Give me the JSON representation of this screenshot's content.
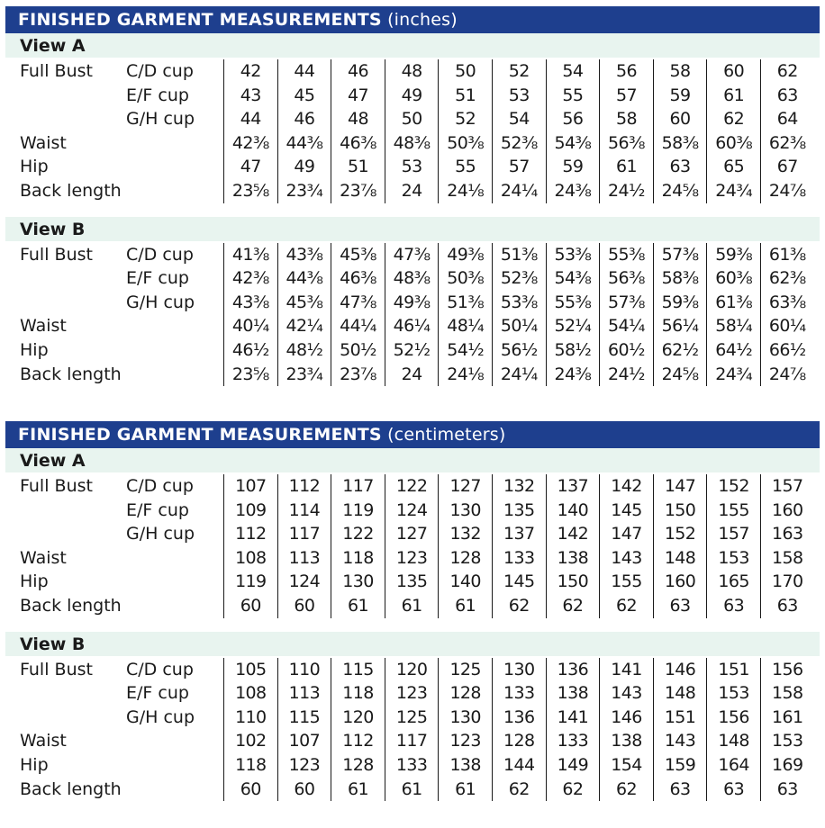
{
  "sections": [
    {
      "title": "FINISHED GARMENT MEASUREMENTS",
      "unit": "(inches)",
      "views": [
        {
          "name": "View A",
          "rows": [
            {
              "label": "Full Bust",
              "sub": "C/D cup",
              "values": [
                "42",
                "44",
                "46",
                "48",
                "50",
                "52",
                "54",
                "56",
                "58",
                "60",
                "62"
              ]
            },
            {
              "label": "",
              "sub": "E/F cup",
              "values": [
                "43",
                "45",
                "47",
                "49",
                "51",
                "53",
                "55",
                "57",
                "59",
                "61",
                "63"
              ]
            },
            {
              "label": "",
              "sub": "G/H cup",
              "values": [
                "44",
                "46",
                "48",
                "50",
                "52",
                "54",
                "56",
                "58",
                "60",
                "62",
                "64"
              ]
            },
            {
              "label": "Waist",
              "sub": "",
              "values": [
                "42⅜",
                "44⅜",
                "46⅜",
                "48⅜",
                "50⅜",
                "52⅜",
                "54⅜",
                "56⅜",
                "58⅜",
                "60⅜",
                "62⅜"
              ]
            },
            {
              "label": "Hip",
              "sub": "",
              "values": [
                "47",
                "49",
                "51",
                "53",
                "55",
                "57",
                "59",
                "61",
                "63",
                "65",
                "67"
              ]
            },
            {
              "label": "Back length",
              "sub": "",
              "values": [
                "23⅝",
                "23¾",
                "23⅞",
                "24",
                "24⅛",
                "24¼",
                "24⅜",
                "24½",
                "24⅝",
                "24¾",
                "24⅞"
              ]
            }
          ]
        },
        {
          "name": "View B",
          "rows": [
            {
              "label": "Full Bust",
              "sub": "C/D cup",
              "values": [
                "41⅜",
                "43⅜",
                "45⅜",
                "47⅜",
                "49⅜",
                "51⅜",
                "53⅜",
                "55⅜",
                "57⅜",
                "59⅜",
                "61⅜"
              ]
            },
            {
              "label": "",
              "sub": "E/F cup",
              "values": [
                "42⅜",
                "44⅜",
                "46⅜",
                "48⅜",
                "50⅜",
                "52⅜",
                "54⅜",
                "56⅜",
                "58⅜",
                "60⅜",
                "62⅜"
              ]
            },
            {
              "label": "",
              "sub": "G/H cup",
              "values": [
                "43⅜",
                "45⅜",
                "47⅜",
                "49⅜",
                "51⅜",
                "53⅜",
                "55⅜",
                "57⅜",
                "59⅜",
                "61⅜",
                "63⅜"
              ]
            },
            {
              "label": "Waist",
              "sub": "",
              "values": [
                "40¼",
                "42¼",
                "44¼",
                "46¼",
                "48¼",
                "50¼",
                "52¼",
                "54¼",
                "56¼",
                "58¼",
                "60¼"
              ]
            },
            {
              "label": "Hip",
              "sub": "",
              "values": [
                "46½",
                "48½",
                "50½",
                "52½",
                "54½",
                "56½",
                "58½",
                "60½",
                "62½",
                "64½",
                "66½"
              ]
            },
            {
              "label": "Back length",
              "sub": "",
              "values": [
                "23⅝",
                "23¾",
                "23⅞",
                "24",
                "24⅛",
                "24¼",
                "24⅜",
                "24½",
                "24⅝",
                "24¾",
                "24⅞"
              ]
            }
          ]
        }
      ]
    },
    {
      "title": "FINISHED GARMENT MEASUREMENTS",
      "unit": "(centimeters)",
      "views": [
        {
          "name": "View A",
          "rows": [
            {
              "label": "Full Bust",
              "sub": "C/D cup",
              "values": [
                "107",
                "112",
                "117",
                "122",
                "127",
                "132",
                "137",
                "142",
                "147",
                "152",
                "157"
              ]
            },
            {
              "label": "",
              "sub": "E/F cup",
              "values": [
                "109",
                "114",
                "119",
                "124",
                "130",
                "135",
                "140",
                "145",
                "150",
                "155",
                "160"
              ]
            },
            {
              "label": "",
              "sub": "G/H cup",
              "values": [
                "112",
                "117",
                "122",
                "127",
                "132",
                "137",
                "142",
                "147",
                "152",
                "157",
                "163"
              ]
            },
            {
              "label": "Waist",
              "sub": "",
              "values": [
                "108",
                "113",
                "118",
                "123",
                "128",
                "133",
                "138",
                "143",
                "148",
                "153",
                "158"
              ]
            },
            {
              "label": "Hip",
              "sub": "",
              "values": [
                "119",
                "124",
                "130",
                "135",
                "140",
                "145",
                "150",
                "155",
                "160",
                "165",
                "170"
              ]
            },
            {
              "label": "Back length",
              "sub": "",
              "values": [
                "60",
                "60",
                "61",
                "61",
                "61",
                "62",
                "62",
                "62",
                "63",
                "63",
                "63"
              ]
            }
          ]
        },
        {
          "name": "View B",
          "rows": [
            {
              "label": "Full Bust",
              "sub": "C/D cup",
              "values": [
                "105",
                "110",
                "115",
                "120",
                "125",
                "130",
                "136",
                "141",
                "146",
                "151",
                "156"
              ]
            },
            {
              "label": "",
              "sub": "E/F cup",
              "values": [
                "108",
                "113",
                "118",
                "123",
                "128",
                "133",
                "138",
                "143",
                "148",
                "153",
                "158"
              ]
            },
            {
              "label": "",
              "sub": "G/H cup",
              "values": [
                "110",
                "115",
                "120",
                "125",
                "130",
                "136",
                "141",
                "146",
                "151",
                "156",
                "161"
              ]
            },
            {
              "label": "Waist",
              "sub": "",
              "values": [
                "102",
                "107",
                "112",
                "117",
                "123",
                "128",
                "133",
                "138",
                "143",
                "148",
                "153"
              ]
            },
            {
              "label": "Hip",
              "sub": "",
              "values": [
                "118",
                "123",
                "128",
                "133",
                "138",
                "144",
                "149",
                "154",
                "159",
                "164",
                "169"
              ]
            },
            {
              "label": "Back length",
              "sub": "",
              "values": [
                "60",
                "60",
                "61",
                "61",
                "61",
                "62",
                "62",
                "62",
                "63",
                "63",
                "63"
              ]
            }
          ]
        }
      ]
    }
  ]
}
